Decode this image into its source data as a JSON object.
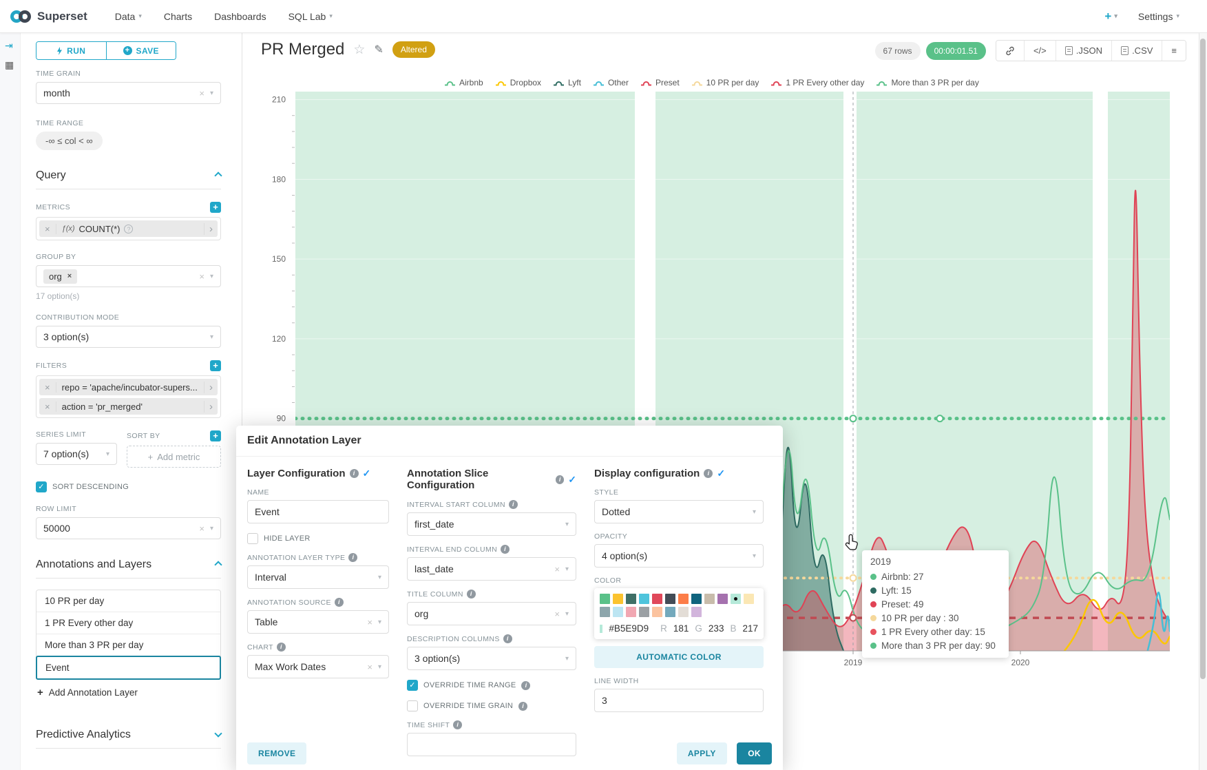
{
  "navbar": {
    "brand": "Superset",
    "items": [
      {
        "label": "Data"
      },
      {
        "label": "Charts"
      },
      {
        "label": "Dashboards"
      },
      {
        "label": "SQL Lab"
      }
    ],
    "plus": "+",
    "settings": "Settings"
  },
  "sidebar": {
    "run_label": "RUN",
    "save_label": "SAVE",
    "time_grain_label": "TIME GRAIN",
    "time_grain_value": "month",
    "time_range_label": "TIME RANGE",
    "time_range_value": "-∞ ≤ col < ∞",
    "query": {
      "title": "Query",
      "metrics_label": "METRICS",
      "metric_fx": "ƒ(x)",
      "metric_value": "COUNT(*)",
      "group_by_label": "GROUP BY",
      "group_by_chip": "org",
      "group_by_hint": "17 option(s)",
      "contribution_label": "CONTRIBUTION MODE",
      "contribution_value": "3 option(s)",
      "filters_label": "FILTERS",
      "filters": [
        "repo = 'apache/incubator-supers...",
        "action = 'pr_merged'"
      ],
      "series_limit_label": "SERIES LIMIT",
      "series_limit_value": "7 option(s)",
      "sort_by_label": "SORT BY",
      "sort_by_placeholder": "Add metric",
      "sort_descending_label": "SORT DESCENDING",
      "row_limit_label": "ROW LIMIT",
      "row_limit_value": "50000"
    },
    "annotations": {
      "title": "Annotations and Layers",
      "layers": [
        "10 PR per day",
        "1 PR Every other day",
        "More than 3 PR per day",
        "Event"
      ],
      "selected": "Event",
      "add_label": "Add Annotation Layer"
    },
    "predictive_title": "Predictive Analytics"
  },
  "header": {
    "title": "PR Merged",
    "badge": "Altered",
    "rows": "67 rows",
    "timer": "00:00:01.51",
    "json_label": ".JSON",
    "csv_label": ".CSV"
  },
  "chart_data": {
    "type": "line",
    "title": "PR Merged",
    "x_ticks": [
      "2019",
      "2020"
    ],
    "x_tick_pos": [
      {
        "x": 810,
        "label": "2019"
      },
      {
        "x": 1053,
        "label": "2020"
      }
    ],
    "y_ticks": [
      90,
      120,
      150,
      180,
      210
    ],
    "ylim": [
      0,
      213
    ],
    "grid": true,
    "band_fill": "rgba(90,193,137,0.25)",
    "interval_bands": [
      [
        0,
        493
      ],
      [
        523,
        796
      ],
      [
        815,
        1158
      ],
      [
        1180,
        1270
      ]
    ],
    "legend": [
      {
        "name": "Airbnb",
        "color": "#5AC189"
      },
      {
        "name": "Dropbox",
        "color": "#FCC700"
      },
      {
        "name": "Lyft",
        "color": "#2E6B62"
      },
      {
        "name": "Other",
        "color": "#45BED6"
      },
      {
        "name": "Preset",
        "color": "#E04355"
      },
      {
        "name": "10 PR per day",
        "color": "#F5D89B"
      },
      {
        "name": "1 PR Every other day",
        "color": "#E04355"
      },
      {
        "name": "More than 3 PR per day",
        "color": "#5AC189"
      }
    ],
    "annotation_lines": [
      {
        "name": "10 PR per day",
        "value": 30,
        "color": "#F5D89B",
        "width": 4,
        "dash": "1 8",
        "cap": "round"
      },
      {
        "name": "1 PR Every other day",
        "value": 15,
        "color": "#C04A52",
        "width": 3.5,
        "dash": "9 8"
      },
      {
        "name": "More than 3 PR per day",
        "value": 90,
        "color": "#5AC189",
        "width": 5,
        "dash": "1 9",
        "cap": "round"
      }
    ],
    "vertical_line": {
      "x": 810,
      "label": "2019",
      "dash": "4 4"
    },
    "markers": [
      {
        "x": 810,
        "value": 90,
        "color": "#5AC189"
      },
      {
        "x": 936,
        "value": 90,
        "color": "#5AC189"
      },
      {
        "x": 810,
        "value": 30,
        "color": "#F5D89B"
      },
      {
        "x": 810,
        "value": 15,
        "color": "#C04A52"
      }
    ],
    "series": [
      {
        "name": "Lyft",
        "color": "#2E6B62",
        "width": 2,
        "fill": "rgba(46,107,98,0.5)",
        "points": [
          [
            695,
            0
          ],
          [
            706,
            48
          ],
          [
            716,
            91
          ],
          [
            727,
            38
          ],
          [
            741,
            76
          ],
          [
            754,
            28
          ],
          [
            768,
            44
          ],
          [
            782,
            12
          ],
          [
            800,
            0
          ]
        ]
      },
      {
        "name": "Preset",
        "color": "#E04355",
        "width": 2,
        "fill": "rgba(224,67,85,0.38)",
        "points": [
          [
            670,
            0
          ],
          [
            690,
            12
          ],
          [
            710,
            22
          ],
          [
            730,
            15
          ],
          [
            750,
            28
          ],
          [
            770,
            18
          ],
          [
            790,
            10
          ],
          [
            808,
            16
          ],
          [
            826,
            30
          ],
          [
            845,
            48
          ],
          [
            860,
            40
          ],
          [
            878,
            22
          ],
          [
            900,
            16
          ],
          [
            925,
            26
          ],
          [
            950,
            44
          ],
          [
            974,
            52
          ],
          [
            992,
            32
          ],
          [
            1012,
            16
          ],
          [
            1035,
            24
          ],
          [
            1058,
            40
          ],
          [
            1077,
            46
          ],
          [
            1098,
            30
          ],
          [
            1120,
            18
          ],
          [
            1145,
            26
          ],
          [
            1168,
            16
          ],
          [
            1185,
            24
          ],
          [
            1200,
            18
          ],
          [
            1210,
            40
          ],
          [
            1216,
            120
          ],
          [
            1220,
            196
          ],
          [
            1226,
            110
          ],
          [
            1234,
            50
          ],
          [
            1248,
            24
          ],
          [
            1262,
            16
          ],
          [
            1270,
            14
          ]
        ]
      },
      {
        "name": "Airbnb",
        "color": "#5AC189",
        "width": 2,
        "fill": "none",
        "points": [
          [
            0,
            2
          ],
          [
            60,
            3
          ],
          [
            120,
            2
          ],
          [
            180,
            4
          ],
          [
            240,
            3
          ],
          [
            300,
            5
          ],
          [
            360,
            4
          ],
          [
            420,
            8
          ],
          [
            455,
            20
          ],
          [
            484,
            101
          ],
          [
            500,
            18
          ],
          [
            520,
            6
          ],
          [
            560,
            5
          ],
          [
            600,
            7
          ],
          [
            640,
            6
          ],
          [
            680,
            10
          ],
          [
            700,
            30
          ],
          [
            716,
            91
          ],
          [
            728,
            45
          ],
          [
            742,
            76
          ],
          [
            756,
            35
          ],
          [
            770,
            50
          ],
          [
            786,
            20
          ],
          [
            800,
            28
          ],
          [
            815,
            12
          ],
          [
            840,
            8
          ],
          [
            870,
            14
          ],
          [
            900,
            10
          ],
          [
            930,
            12
          ],
          [
            960,
            14
          ],
          [
            990,
            12
          ],
          [
            1020,
            10
          ],
          [
            1050,
            14
          ],
          [
            1070,
            18
          ],
          [
            1088,
            30
          ],
          [
            1102,
            81
          ],
          [
            1118,
            28
          ],
          [
            1140,
            22
          ],
          [
            1165,
            35
          ],
          [
            1190,
            24
          ],
          [
            1215,
            30
          ],
          [
            1240,
            28
          ],
          [
            1261,
            65
          ],
          [
            1270,
            52
          ]
        ]
      },
      {
        "name": "Dropbox",
        "color": "#FCC700",
        "width": 2.5,
        "fill": "none",
        "points": [
          [
            1115,
            2
          ],
          [
            1135,
            8
          ],
          [
            1158,
            26
          ],
          [
            1180,
            10
          ],
          [
            1200,
            20
          ],
          [
            1222,
            5
          ],
          [
            1244,
            12
          ],
          [
            1262,
            4
          ],
          [
            1270,
            8
          ]
        ]
      },
      {
        "name": "Other",
        "color": "#45BED6",
        "width": 2.5,
        "fill": "none",
        "points": [
          [
            1235,
            0
          ],
          [
            1246,
            10
          ],
          [
            1254,
            30
          ],
          [
            1261,
            6
          ],
          [
            1267,
            18
          ],
          [
            1270,
            10
          ]
        ]
      }
    ],
    "tooltip": {
      "title": "2019",
      "rows": [
        {
          "text": "Airbnb: 27",
          "color": "#5AC189"
        },
        {
          "text": "Lyft: 15",
          "color": "#2E6B62"
        },
        {
          "text": "Preset: 49",
          "color": "#E04355"
        },
        {
          "text": "10 PR per day : 30",
          "color": "#F5D89B"
        },
        {
          "text": "1 PR Every other day: 15",
          "color": "#E8535E"
        },
        {
          "text": "More than 3 PR per day: 90",
          "color": "#5AC189"
        }
      ]
    }
  },
  "modal": {
    "title": "Edit Annotation Layer",
    "columns": {
      "layer": {
        "title": "Layer Configuration",
        "name_label": "NAME",
        "name_value": "Event",
        "hide_layer_label": "HIDE LAYER",
        "type_label": "ANNOTATION LAYER TYPE",
        "type_value": "Interval",
        "source_label": "ANNOTATION SOURCE",
        "source_value": "Table",
        "chart_label": "CHART",
        "chart_value": "Max Work Dates"
      },
      "slice": {
        "title": "Annotation Slice Configuration",
        "start_label": "INTERVAL START COLUMN",
        "start_value": "first_date",
        "end_label": "INTERVAL END COLUMN",
        "end_value": "last_date",
        "title_label": "TITLE COLUMN",
        "title_value": "org",
        "desc_label": "DESCRIPTION COLUMNS",
        "desc_value": "3 option(s)",
        "override_range_label": "OVERRIDE TIME RANGE",
        "override_grain_label": "OVERRIDE TIME GRAIN",
        "time_shift_label": "TIME SHIFT"
      },
      "display": {
        "title": "Display configuration",
        "style_label": "STYLE",
        "style_value": "Dotted",
        "opacity_label": "OPACITY",
        "opacity_value": "4 option(s)",
        "color_label": "COLOR",
        "swatches_row1": [
          "#5AC189",
          "#FBC32F",
          "#3F6F66",
          "#4FC4DC",
          "#E0485A",
          "#434C56",
          "#FC7D48",
          "#10647E",
          "#C8BCAB",
          "#A571AE",
          "#B5E9D9",
          "#FBE7B4"
        ],
        "swatches_row2": [
          "#8DA6AC",
          "#BCE5F2",
          "#F1A7B2",
          "#9BA0A4",
          "#FBC39F",
          "#74A9BC",
          "#E3DDD6",
          "#D2B5DC"
        ],
        "selected_index": 10,
        "hex": "#B5E9D9",
        "r_label": "R",
        "r": "181",
        "g_label": "G",
        "g": "233",
        "b_label": "B",
        "b": "217",
        "auto_color_label": "AUTOMATIC COLOR",
        "line_width_label": "LINE WIDTH",
        "line_width_value": "3"
      }
    },
    "remove_label": "REMOVE",
    "apply_label": "APPLY",
    "ok_label": "OK"
  }
}
